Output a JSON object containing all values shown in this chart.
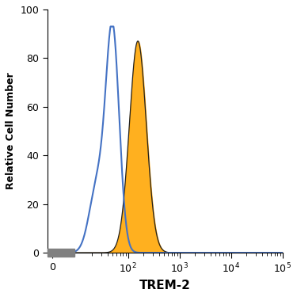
{
  "xlabel": "TREM-2",
  "ylabel": "Relative Cell Number",
  "ylim": [
    0,
    100
  ],
  "yticks": [
    0,
    20,
    40,
    60,
    80,
    100
  ],
  "blue_color": "#4472C4",
  "orange_color": "#FFA500",
  "orange_edge_color": "#222222",
  "background_color": "#FFFFFF",
  "blue_peak_x": 50,
  "blue_peak_y": 91,
  "blue_sigma": 0.3,
  "orange_peak_x": 155,
  "orange_peak_y": 87,
  "orange_sigma": 0.38,
  "linthresh": 5,
  "linscale": 0.15,
  "xlim_min": -3,
  "xlim_max": 100000,
  "xlabel_fontsize": 11,
  "ylabel_fontsize": 9
}
